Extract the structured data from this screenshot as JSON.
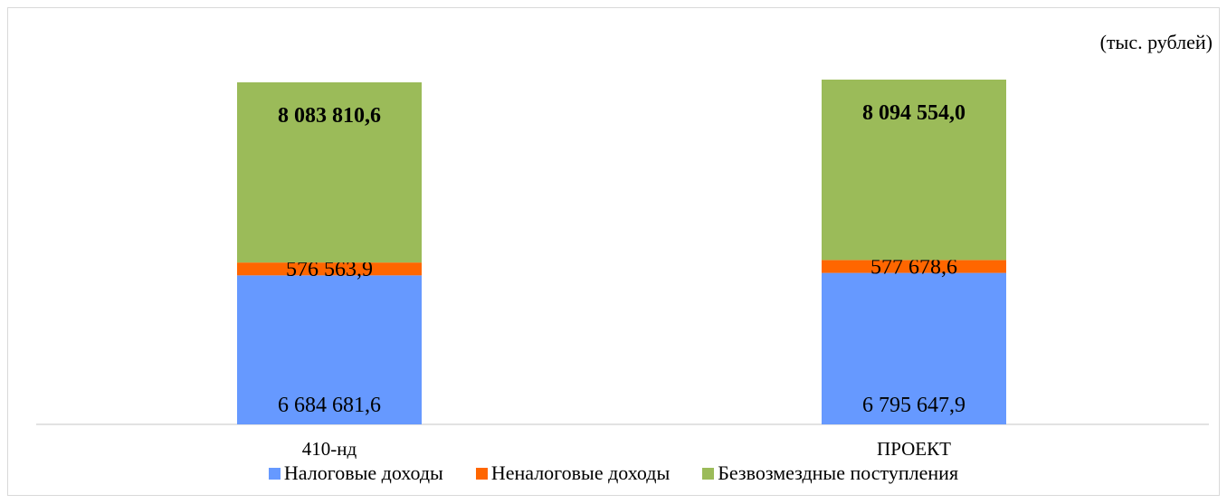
{
  "unit_label": "(тыс. рублей)",
  "chart_data": {
    "type": "bar",
    "stacked": true,
    "categories": [
      "410-нд",
      "ПРОЕКТ"
    ],
    "series": [
      {
        "name": "Налоговые доходы",
        "color": "#6699ff",
        "values": [
          6684681.6,
          6795647.9
        ],
        "labels": [
          "6 684 681,6",
          "6 795 647,9"
        ],
        "label_bold": false
      },
      {
        "name": "Неналоговые доходы",
        "color": "#ff6600",
        "values": [
          576563.9,
          577678.6
        ],
        "labels": [
          "576 563,9",
          "577 678,6"
        ],
        "label_bold": false
      },
      {
        "name": "Безвозмездные поступления",
        "color": "#9bbb59",
        "values": [
          8083810.6,
          8094554.0
        ],
        "labels": [
          "8 083 810,6",
          "8 094 554,0"
        ],
        "label_bold": true
      }
    ],
    "grid": false,
    "legend_position": "bottom"
  }
}
